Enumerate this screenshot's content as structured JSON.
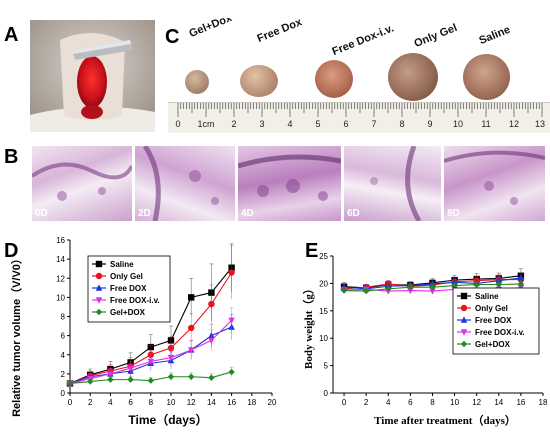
{
  "panels": {
    "a": {
      "label": "A"
    },
    "b": {
      "label": "B",
      "days": [
        "0D",
        "2D",
        "4D",
        "6D",
        "8D"
      ]
    },
    "c": {
      "label": "C",
      "groups": [
        "Gel+Dox",
        "Free Dox",
        "Free Dox-i.v.",
        "Only Gel",
        "Saline"
      ],
      "ruler_labels": [
        "0",
        "1cm",
        "2",
        "3",
        "4",
        "5",
        "6",
        "7",
        "8",
        "9",
        "10",
        "11",
        "12",
        "13"
      ]
    },
    "d": {
      "label": "D"
    },
    "e": {
      "label": "E"
    }
  },
  "colors": {
    "saline": "#000000",
    "only_gel": "#e8141c",
    "free_dox": "#1a34d6",
    "free_dox_iv": "#e030e6",
    "gel_dox": "#1f8a1f"
  },
  "chart_data": [
    {
      "panel": "D",
      "type": "line",
      "xlabel": "Time（days）",
      "ylabel": "Relative tumor volume（V/V0）",
      "xlim": [
        0,
        20
      ],
      "ylim": [
        0,
        16
      ],
      "x_ticks": [
        "0",
        "2",
        "4",
        "6",
        "8",
        "10",
        "12",
        "14",
        "16",
        "18",
        "20"
      ],
      "y_ticks": [
        "0",
        "2",
        "4",
        "6",
        "8",
        "10",
        "12",
        "14",
        "16"
      ],
      "grid": false,
      "legend_position": "top-left",
      "x": [
        0,
        2,
        4,
        6,
        8,
        10,
        12,
        14,
        16
      ],
      "series": [
        {
          "name": "Saline",
          "color": "#000000",
          "marker": "square",
          "values": [
            1,
            1.9,
            2.5,
            3.2,
            4.8,
            5.5,
            10.0,
            10.5,
            13.1
          ],
          "errors": [
            0.2,
            0.6,
            0.8,
            1.0,
            1.3,
            1.5,
            2.0,
            3.0,
            2.5
          ]
        },
        {
          "name": "Only Gel",
          "color": "#e8141c",
          "marker": "circle",
          "values": [
            1,
            1.8,
            2.3,
            2.8,
            4.0,
            4.7,
            6.8,
            9.3,
            12.6
          ],
          "errors": [
            0.2,
            0.5,
            0.7,
            0.9,
            1.0,
            1.2,
            1.5,
            2.0,
            2.8
          ]
        },
        {
          "name": "Free DOX",
          "color": "#1a34d6",
          "marker": "triangle",
          "values": [
            1,
            1.7,
            2.0,
            2.3,
            3.1,
            3.4,
            4.5,
            6.0,
            6.9
          ],
          "errors": [
            0.2,
            0.4,
            0.5,
            0.6,
            0.8,
            0.9,
            1.0,
            1.2,
            1.3
          ]
        },
        {
          "name": "Free DOX-i.v.",
          "color": "#e030e6",
          "marker": "triangle-down",
          "values": [
            1,
            1.5,
            2.0,
            2.6,
            3.3,
            3.7,
            4.5,
            5.5,
            7.6
          ],
          "errors": [
            0.2,
            0.4,
            0.5,
            0.7,
            0.8,
            0.9,
            1.0,
            1.1,
            1.3
          ]
        },
        {
          "name": "Gel+DOX",
          "color": "#1f8a1f",
          "marker": "diamond",
          "values": [
            1,
            1.2,
            1.4,
            1.4,
            1.3,
            1.7,
            1.7,
            1.6,
            2.2
          ],
          "errors": [
            0.1,
            0.2,
            0.3,
            0.3,
            0.3,
            0.4,
            0.4,
            0.4,
            0.5
          ]
        }
      ]
    },
    {
      "panel": "E",
      "type": "line",
      "xlabel": "Time after treatment（days）",
      "ylabel": "Body weight（g）",
      "xlim": [
        -1,
        18
      ],
      "ylim": [
        0,
        25
      ],
      "x_ticks": [
        "0",
        "2",
        "4",
        "6",
        "8",
        "10",
        "12",
        "14",
        "16",
        "18"
      ],
      "y_ticks": [
        "0",
        "5",
        "10",
        "15",
        "20",
        "25"
      ],
      "grid": false,
      "legend_position": "center-right",
      "x": [
        0,
        2,
        4,
        6,
        8,
        10,
        12,
        14,
        16
      ],
      "series": [
        {
          "name": "Saline",
          "color": "#000000",
          "marker": "square",
          "values": [
            19.4,
            19.2,
            19.8,
            19.7,
            20.1,
            20.6,
            20.8,
            20.9,
            21.4
          ],
          "errors": [
            0.8,
            0.6,
            0.7,
            0.6,
            0.8,
            0.9,
            1.0,
            1.0,
            1.3
          ]
        },
        {
          "name": "Only Gel",
          "color": "#e8141c",
          "marker": "circle",
          "values": [
            19.0,
            19.3,
            19.9,
            19.5,
            19.7,
            20.3,
            20.5,
            20.7,
            20.7
          ],
          "errors": [
            0.6,
            0.5,
            0.6,
            0.5,
            0.6,
            0.8,
            0.8,
            0.9,
            1.0
          ]
        },
        {
          "name": "Free DOX",
          "color": "#1a34d6",
          "marker": "triangle",
          "values": [
            19.3,
            19.0,
            19.5,
            19.6,
            19.9,
            20.2,
            20.0,
            20.5,
            21.0
          ],
          "errors": [
            0.6,
            0.5,
            0.6,
            0.6,
            0.6,
            0.7,
            0.7,
            0.8,
            0.9
          ]
        },
        {
          "name": "Free DOX-i.v.",
          "color": "#e030e6",
          "marker": "triangle-down",
          "values": [
            18.8,
            18.9,
            18.6,
            18.7,
            18.6,
            18.9,
            18.7,
            18.9,
            19.2
          ],
          "errors": [
            0.5,
            0.5,
            0.5,
            0.5,
            0.5,
            0.6,
            0.6,
            0.6,
            0.7
          ]
        },
        {
          "name": "Gel+DOX",
          "color": "#1f8a1f",
          "marker": "diamond",
          "values": [
            18.7,
            18.6,
            19.0,
            19.3,
            19.3,
            19.6,
            19.8,
            19.8,
            19.9
          ],
          "errors": [
            0.5,
            0.5,
            0.5,
            0.5,
            0.6,
            0.6,
            0.6,
            0.7,
            0.7
          ]
        }
      ]
    }
  ]
}
